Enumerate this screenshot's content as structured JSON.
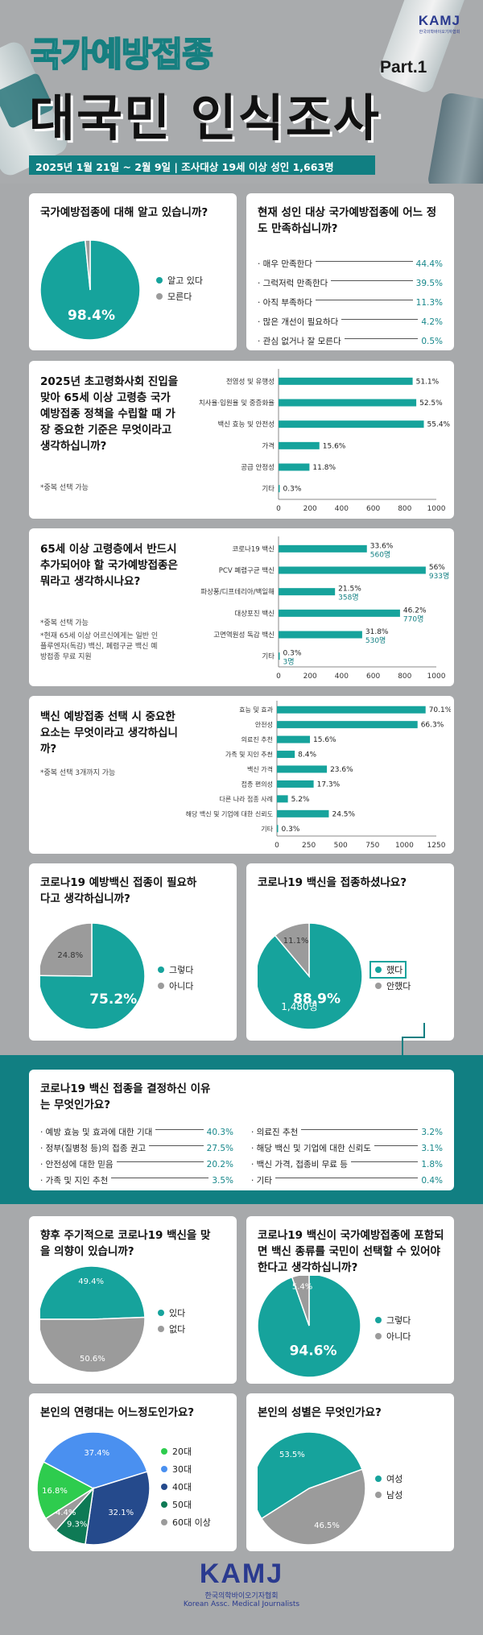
{
  "header": {
    "logo": "KAMJ",
    "logo_sub": "한국의학바이오기자협회",
    "title_line1": "국가예방접종",
    "part_label": "Part.1",
    "title_line2": "대국민 인식조사",
    "survey_info": "2025년 1월 21일 ~ 2월 9일 | 조사대상 19세 이상 성인 1,663명"
  },
  "colors": {
    "teal": "#16a39c",
    "gray": "#9b9b9b",
    "dark_teal": "#117f82",
    "pie_20s": "#2ecc4e",
    "pie_30s": "#4a90f0",
    "pie_40s": "#254a8c",
    "pie_50s": "#0e7a55",
    "pie_60s": "#9b9b9b"
  },
  "q1": {
    "question": "국가예방접종에 대해 알고 있습니까?"
  },
  "q2": {
    "question": "현재 성인 대상 국가예방접종에 어느 정도 만족하십니까?",
    "items": [
      {
        "label": "매우 만족한다",
        "pct": "44.4%"
      },
      {
        "label": "그럭저럭 만족한다",
        "pct": "39.5%"
      },
      {
        "label": "아직 부족하다",
        "pct": "11.3%"
      },
      {
        "label": "많은 개선이 필요하다",
        "pct": "4.2%"
      },
      {
        "label": "관심 없거나 잘 모른다",
        "pct": "0.5%"
      }
    ]
  },
  "q3": {
    "question": "2025년 초고령화사회 진입을 맞아 65세 이상 고령층 국가예방접종 정책을 수립할 때 가장 중요한 기준은 무엇이라고 생각하십니까?",
    "note": "*중복 선택 가능"
  },
  "q4": {
    "question": "65세 이상 고령층에서 반드시 추가되어야 할 국가예방접종은 뭐라고 생각하시나요?",
    "note1": "*중복 선택 가능",
    "note2": "*현재 65세 이상 어르신에게는 일반 인플루엔자(독감) 백신, 폐렴구균 백신 예방접종 무료 지원"
  },
  "q5": {
    "question": "백신 예방접종 선택 시 중요한 요소는 무엇이라고 생각하십니까?",
    "note": "*중복 선택 3개까지 가능"
  },
  "q6": {
    "question": "코로나19 예방백신 접종이 필요하다고 생각하십니까?"
  },
  "q7": {
    "question": "코로나19 백신을 접종하셨나요?",
    "count": "1,480명"
  },
  "q8": {
    "question": "코로나19 백신 접종을 결정하신 이유는 무엇인가요?",
    "left": [
      {
        "label": "예방 효능 및 효과에 대한 기대",
        "pct": "40.3%"
      },
      {
        "label": "정부(질병청 등)의 접종 권고",
        "pct": "27.5%"
      },
      {
        "label": "안전성에 대한 믿음",
        "pct": "20.2%"
      },
      {
        "label": "가족 및 지인 추천",
        "pct": "3.5%"
      }
    ],
    "right": [
      {
        "label": "의료진 추천",
        "pct": "3.2%"
      },
      {
        "label": "해당 백신 및 기업에 대한 신뢰도",
        "pct": "3.1%"
      },
      {
        "label": "백신 가격, 접종비 무료 등",
        "pct": "1.8%"
      },
      {
        "label": "기타",
        "pct": "0.4%"
      }
    ]
  },
  "q9": {
    "question": "향후 주기적으로 코로나19 백신을 맞을 의향이 있습니까?"
  },
  "q10": {
    "question": "코로나19 백신이 국가예방접종에 포함되면 백신 종류를 국민이 선택할 수 있어야 한다고 생각하십니까?"
  },
  "q11": {
    "question": "본인의 연령대는 어느정도인가요?"
  },
  "q12": {
    "question": "본인의 성별은 무엇인가요?"
  },
  "footer": {
    "logo": "KAMJ",
    "sub1": "한국의학바이오기자협회",
    "sub2": "Korean Assc. Medical Journalists"
  },
  "chart_data": [
    {
      "id": "q1",
      "type": "pie",
      "categories": [
        "알고 있다",
        "모른다"
      ],
      "values": [
        98.4,
        1.6
      ],
      "labels": [
        "98.4%",
        "1.6%"
      ]
    },
    {
      "id": "q3",
      "type": "bar",
      "orientation": "horizontal",
      "categories": [
        "전염성 및 유행성",
        "치사율·입원율 및 중증화율",
        "백신 효능 및 안전성",
        "가격",
        "공급 안정성",
        "기타"
      ],
      "values": [
        850,
        873,
        921,
        259,
        196,
        5
      ],
      "labels": [
        "51.1%",
        "52.5%",
        "55.4%",
        "15.6%",
        "11.8%",
        "0.3%"
      ],
      "xlim": [
        0,
        1000
      ],
      "xticks": [
        0,
        200,
        400,
        600,
        800,
        1000
      ]
    },
    {
      "id": "q4",
      "type": "bar",
      "orientation": "horizontal",
      "categories": [
        "코로나19 백신",
        "PCV 폐렴구균 백신",
        "파상풍/디프테리아/백일해",
        "대상포진 백신",
        "고면역원성 독감 백신",
        "기타"
      ],
      "values": [
        560,
        933,
        358,
        770,
        530,
        3
      ],
      "labels": [
        "33.6%",
        "56%",
        "21.5%",
        "46.2%",
        "31.8%",
        "0.3%"
      ],
      "counts": [
        "560명",
        "933명",
        "358명",
        "770명",
        "530명",
        "3명"
      ],
      "xlim": [
        0,
        1000
      ],
      "xticks": [
        0,
        200,
        400,
        600,
        800,
        1000
      ]
    },
    {
      "id": "q5",
      "type": "bar",
      "orientation": "horizontal",
      "categories": [
        "효능 및 효과",
        "안전성",
        "의료진 추천",
        "가족 및 지인 추천",
        "백신 가격",
        "접종 편의성",
        "다른 나라 접종 사례",
        "해당 백신 및 기업에 대한 신뢰도",
        "기타"
      ],
      "values": [
        1166,
        1103,
        259,
        140,
        392,
        288,
        86,
        407,
        5
      ],
      "labels": [
        "70.1%",
        "66.3%",
        "15.6%",
        "8.4%",
        "23.6%",
        "17.3%",
        "5.2%",
        "24.5%",
        "0.3%"
      ],
      "xlim": [
        0,
        1250
      ],
      "xticks": [
        0,
        250,
        500,
        750,
        1000,
        1250
      ]
    },
    {
      "id": "q6",
      "type": "pie",
      "categories": [
        "그렇다",
        "아니다"
      ],
      "values": [
        75.2,
        24.8
      ],
      "labels": [
        "75.2%",
        "24.8%"
      ]
    },
    {
      "id": "q7",
      "type": "pie",
      "categories": [
        "했다",
        "안했다"
      ],
      "values": [
        88.9,
        11.1
      ],
      "labels": [
        "88.9%",
        "11.1%"
      ]
    },
    {
      "id": "q9",
      "type": "pie",
      "categories": [
        "있다",
        "없다"
      ],
      "values": [
        49.4,
        50.6
      ],
      "labels": [
        "49.4%",
        "50.6%"
      ]
    },
    {
      "id": "q10",
      "type": "pie",
      "categories": [
        "그렇다",
        "아니다"
      ],
      "values": [
        94.6,
        5.4
      ],
      "labels": [
        "94.6%",
        "5.4%"
      ]
    },
    {
      "id": "q11",
      "type": "pie",
      "categories": [
        "20대",
        "30대",
        "40대",
        "50대",
        "60대 이상"
      ],
      "values": [
        16.8,
        37.4,
        32.1,
        9.3,
        4.4
      ],
      "labels": [
        "16.8%",
        "37.4%",
        "32.1%",
        "9.3%",
        "4.4%"
      ]
    },
    {
      "id": "q12",
      "type": "pie",
      "categories": [
        "여성",
        "남성"
      ],
      "values": [
        53.5,
        46.5
      ],
      "labels": [
        "53.5%",
        "46.5%"
      ]
    }
  ]
}
